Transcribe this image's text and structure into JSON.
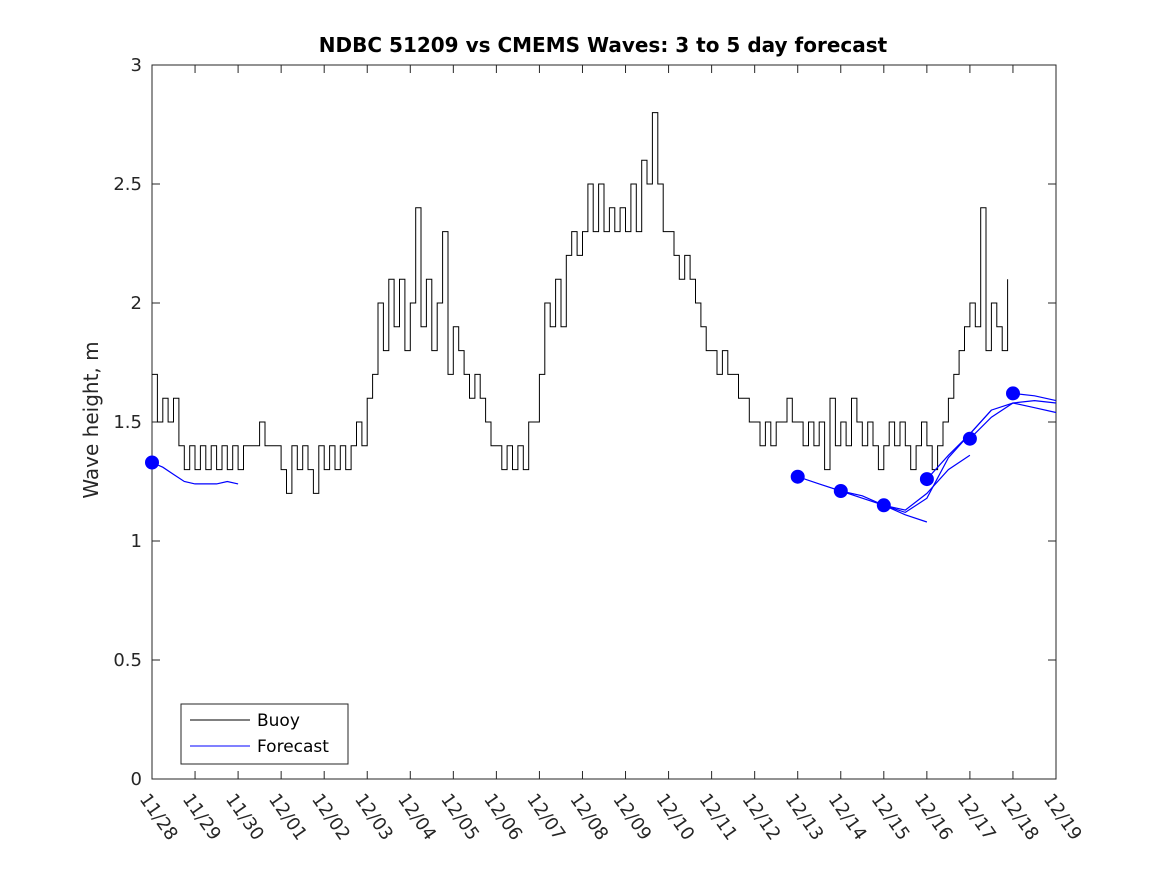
{
  "chart_data": {
    "type": "line",
    "title": "NDBC 51209 vs CMEMS Waves: 3 to 5 day forecast",
    "xlabel": "",
    "ylabel": "Wave height, m",
    "xlim": [
      "11/28",
      "12/19"
    ],
    "ylim": [
      0,
      3
    ],
    "x_tick_labels": [
      "11/28",
      "11/29",
      "11/30",
      "12/01",
      "12/02",
      "12/03",
      "12/04",
      "12/05",
      "12/06",
      "12/07",
      "12/08",
      "12/09",
      "12/10",
      "12/11",
      "12/12",
      "12/13",
      "12/14",
      "12/15",
      "12/16",
      "12/17",
      "12/18",
      "12/19"
    ],
    "y_ticks": [
      0,
      0.5,
      1,
      1.5,
      2,
      2.5,
      3
    ],
    "y_tick_labels": [
      "0",
      "0.5",
      "1",
      "1.5",
      "2",
      "2.5",
      "3"
    ],
    "grid": false,
    "legend": {
      "placement": "bottom-left",
      "entries": [
        "Buoy",
        "Forecast"
      ]
    },
    "series": [
      {
        "name": "Buoy",
        "color": "#000000",
        "points": [
          [
            "11/28 00:00",
            1.7
          ],
          [
            "11/28 03:00",
            1.5
          ],
          [
            "11/28 06:00",
            1.6
          ],
          [
            "11/28 09:00",
            1.5
          ],
          [
            "11/28 12:00",
            1.6
          ],
          [
            "11/28 15:00",
            1.4
          ],
          [
            "11/28 18:00",
            1.3
          ],
          [
            "11/28 21:00",
            1.4
          ],
          [
            "11/29 00:00",
            1.3
          ],
          [
            "11/29 03:00",
            1.4
          ],
          [
            "11/29 06:00",
            1.3
          ],
          [
            "11/29 09:00",
            1.4
          ],
          [
            "11/29 12:00",
            1.3
          ],
          [
            "11/29 15:00",
            1.4
          ],
          [
            "11/29 18:00",
            1.3
          ],
          [
            "11/29 21:00",
            1.4
          ],
          [
            "11/30 00:00",
            1.3
          ],
          [
            "11/30 03:00",
            1.4
          ],
          [
            "11/30 06:00",
            1.4
          ],
          [
            "11/30 09:00",
            1.4
          ],
          [
            "11/30 12:00",
            1.5
          ],
          [
            "11/30 15:00",
            1.4
          ],
          [
            "11/30 18:00",
            1.4
          ],
          [
            "11/30 21:00",
            1.4
          ],
          [
            "12/01 00:00",
            1.3
          ],
          [
            "12/01 03:00",
            1.2
          ],
          [
            "12/01 06:00",
            1.4
          ],
          [
            "12/01 09:00",
            1.3
          ],
          [
            "12/01 12:00",
            1.4
          ],
          [
            "12/01 15:00",
            1.3
          ],
          [
            "12/01 18:00",
            1.2
          ],
          [
            "12/01 21:00",
            1.4
          ],
          [
            "12/02 00:00",
            1.3
          ],
          [
            "12/02 03:00",
            1.4
          ],
          [
            "12/02 06:00",
            1.3
          ],
          [
            "12/02 09:00",
            1.4
          ],
          [
            "12/02 12:00",
            1.3
          ],
          [
            "12/02 15:00",
            1.4
          ],
          [
            "12/02 18:00",
            1.5
          ],
          [
            "12/02 21:00",
            1.4
          ],
          [
            "12/03 00:00",
            1.6
          ],
          [
            "12/03 03:00",
            1.7
          ],
          [
            "12/03 06:00",
            2.0
          ],
          [
            "12/03 09:00",
            1.8
          ],
          [
            "12/03 12:00",
            2.1
          ],
          [
            "12/03 15:00",
            1.9
          ],
          [
            "12/03 18:00",
            2.1
          ],
          [
            "12/03 21:00",
            1.8
          ],
          [
            "12/04 00:00",
            2.0
          ],
          [
            "12/04 03:00",
            2.4
          ],
          [
            "12/04 06:00",
            1.9
          ],
          [
            "12/04 09:00",
            2.1
          ],
          [
            "12/04 12:00",
            1.8
          ],
          [
            "12/04 15:00",
            2.0
          ],
          [
            "12/04 18:00",
            2.3
          ],
          [
            "12/04 21:00",
            1.7
          ],
          [
            "12/05 00:00",
            1.9
          ],
          [
            "12/05 03:00",
            1.8
          ],
          [
            "12/05 06:00",
            1.7
          ],
          [
            "12/05 09:00",
            1.6
          ],
          [
            "12/05 12:00",
            1.7
          ],
          [
            "12/05 15:00",
            1.6
          ],
          [
            "12/05 18:00",
            1.5
          ],
          [
            "12/05 21:00",
            1.4
          ],
          [
            "12/06 00:00",
            1.4
          ],
          [
            "12/06 03:00",
            1.3
          ],
          [
            "12/06 06:00",
            1.4
          ],
          [
            "12/06 09:00",
            1.3
          ],
          [
            "12/06 12:00",
            1.4
          ],
          [
            "12/06 15:00",
            1.3
          ],
          [
            "12/06 18:00",
            1.5
          ],
          [
            "12/06 21:00",
            1.5
          ],
          [
            "12/07 00:00",
            1.7
          ],
          [
            "12/07 03:00",
            2.0
          ],
          [
            "12/07 06:00",
            1.9
          ],
          [
            "12/07 09:00",
            2.1
          ],
          [
            "12/07 12:00",
            1.9
          ],
          [
            "12/07 15:00",
            2.2
          ],
          [
            "12/07 18:00",
            2.3
          ],
          [
            "12/07 21:00",
            2.2
          ],
          [
            "12/08 00:00",
            2.3
          ],
          [
            "12/08 03:00",
            2.5
          ],
          [
            "12/08 06:00",
            2.3
          ],
          [
            "12/08 09:00",
            2.5
          ],
          [
            "12/08 12:00",
            2.3
          ],
          [
            "12/08 15:00",
            2.4
          ],
          [
            "12/08 18:00",
            2.3
          ],
          [
            "12/08 21:00",
            2.4
          ],
          [
            "12/09 00:00",
            2.3
          ],
          [
            "12/09 03:00",
            2.5
          ],
          [
            "12/09 06:00",
            2.3
          ],
          [
            "12/09 09:00",
            2.6
          ],
          [
            "12/09 12:00",
            2.5
          ],
          [
            "12/09 15:00",
            2.8
          ],
          [
            "12/09 18:00",
            2.5
          ],
          [
            "12/09 21:00",
            2.3
          ],
          [
            "12/10 00:00",
            2.3
          ],
          [
            "12/10 03:00",
            2.2
          ],
          [
            "12/10 06:00",
            2.1
          ],
          [
            "12/10 09:00",
            2.2
          ],
          [
            "12/10 12:00",
            2.1
          ],
          [
            "12/10 15:00",
            2.0
          ],
          [
            "12/10 18:00",
            1.9
          ],
          [
            "12/10 21:00",
            1.8
          ],
          [
            "12/11 00:00",
            1.8
          ],
          [
            "12/11 03:00",
            1.7
          ],
          [
            "12/11 06:00",
            1.8
          ],
          [
            "12/11 09:00",
            1.7
          ],
          [
            "12/11 12:00",
            1.7
          ],
          [
            "12/11 15:00",
            1.6
          ],
          [
            "12/11 18:00",
            1.6
          ],
          [
            "12/11 21:00",
            1.5
          ],
          [
            "12/12 00:00",
            1.5
          ],
          [
            "12/12 03:00",
            1.4
          ],
          [
            "12/12 06:00",
            1.5
          ],
          [
            "12/12 09:00",
            1.4
          ],
          [
            "12/12 12:00",
            1.5
          ],
          [
            "12/12 15:00",
            1.5
          ],
          [
            "12/12 18:00",
            1.6
          ],
          [
            "12/12 21:00",
            1.5
          ],
          [
            "12/13 00:00",
            1.5
          ],
          [
            "12/13 03:00",
            1.4
          ],
          [
            "12/13 06:00",
            1.5
          ],
          [
            "12/13 09:00",
            1.4
          ],
          [
            "12/13 12:00",
            1.5
          ],
          [
            "12/13 15:00",
            1.3
          ],
          [
            "12/13 18:00",
            1.6
          ],
          [
            "12/13 21:00",
            1.4
          ],
          [
            "12/14 00:00",
            1.5
          ],
          [
            "12/14 03:00",
            1.4
          ],
          [
            "12/14 06:00",
            1.6
          ],
          [
            "12/14 09:00",
            1.5
          ],
          [
            "12/14 12:00",
            1.4
          ],
          [
            "12/14 15:00",
            1.5
          ],
          [
            "12/14 18:00",
            1.4
          ],
          [
            "12/14 21:00",
            1.3
          ],
          [
            "12/15 00:00",
            1.4
          ],
          [
            "12/15 03:00",
            1.5
          ],
          [
            "12/15 06:00",
            1.4
          ],
          [
            "12/15 09:00",
            1.5
          ],
          [
            "12/15 12:00",
            1.4
          ],
          [
            "12/15 15:00",
            1.3
          ],
          [
            "12/15 18:00",
            1.4
          ],
          [
            "12/15 21:00",
            1.5
          ],
          [
            "12/16 00:00",
            1.4
          ],
          [
            "12/16 03:00",
            1.3
          ],
          [
            "12/16 06:00",
            1.4
          ],
          [
            "12/16 09:00",
            1.5
          ],
          [
            "12/16 12:00",
            1.6
          ],
          [
            "12/16 15:00",
            1.7
          ],
          [
            "12/16 18:00",
            1.8
          ],
          [
            "12/16 21:00",
            1.9
          ],
          [
            "12/17 00:00",
            2.0
          ],
          [
            "12/17 03:00",
            1.9
          ],
          [
            "12/17 06:00",
            2.4
          ],
          [
            "12/17 09:00",
            1.8
          ],
          [
            "12/17 12:00",
            2.0
          ],
          [
            "12/17 15:00",
            1.9
          ],
          [
            "12/17 18:00",
            1.8
          ],
          [
            "12/17 21:00",
            2.1
          ]
        ]
      },
      {
        "name": "Forecast",
        "color": "#0000ff",
        "segments": [
          [
            [
              "11/28 00:00",
              1.33
            ],
            [
              "11/28 06:00",
              1.31
            ],
            [
              "11/28 12:00",
              1.28
            ],
            [
              "11/28 18:00",
              1.25
            ],
            [
              "11/29 00:00",
              1.24
            ],
            [
              "11/29 06:00",
              1.24
            ],
            [
              "11/29 12:00",
              1.24
            ],
            [
              "11/29 18:00",
              1.25
            ],
            [
              "11/30 00:00",
              1.24
            ]
          ],
          [
            [
              "12/13 00:00",
              1.27
            ],
            [
              "12/13 12:00",
              1.24
            ],
            [
              "12/14 00:00",
              1.21
            ],
            [
              "12/14 12:00",
              1.18
            ],
            [
              "12/15 00:00",
              1.15
            ],
            [
              "12/15 12:00",
              1.11
            ],
            [
              "12/16 00:00",
              1.08
            ]
          ],
          [
            [
              "12/14 00:00",
              1.21
            ],
            [
              "12/14 12:00",
              1.19
            ],
            [
              "12/15 00:00",
              1.15
            ],
            [
              "12/15 12:00",
              1.13
            ],
            [
              "12/16 00:00",
              1.2
            ],
            [
              "12/16 12:00",
              1.3
            ],
            [
              "12/17 00:00",
              1.36
            ]
          ],
          [
            [
              "12/15 00:00",
              1.15
            ],
            [
              "12/15 12:00",
              1.12
            ],
            [
              "12/16 00:00",
              1.18
            ],
            [
              "12/16 12:00",
              1.35
            ],
            [
              "12/17 00:00",
              1.45
            ],
            [
              "12/17 12:00",
              1.55
            ]
          ],
          [
            [
              "12/16 00:00",
              1.26
            ],
            [
              "12/16 12:00",
              1.36
            ],
            [
              "12/17 00:00",
              1.45
            ],
            [
              "12/17 12:00",
              1.55
            ],
            [
              "12/18 00:00",
              1.58
            ],
            [
              "12/18 12:00",
              1.56
            ],
            [
              "12/19 00:00",
              1.54
            ]
          ],
          [
            [
              "12/17 00:00",
              1.43
            ],
            [
              "12/17 12:00",
              1.52
            ],
            [
              "12/18 00:00",
              1.58
            ],
            [
              "12/18 12:00",
              1.59
            ],
            [
              "12/19 00:00",
              1.58
            ]
          ],
          [
            [
              "12/18 00:00",
              1.62
            ],
            [
              "12/18 12:00",
              1.61
            ],
            [
              "12/19 00:00",
              1.59
            ]
          ]
        ],
        "markers": [
          [
            "11/28 00:00",
            1.33
          ],
          [
            "12/13 00:00",
            1.27
          ],
          [
            "12/14 00:00",
            1.21
          ],
          [
            "12/15 00:00",
            1.15
          ],
          [
            "12/16 00:00",
            1.26
          ],
          [
            "12/17 00:00",
            1.43
          ],
          [
            "12/18 00:00",
            1.62
          ]
        ]
      }
    ]
  }
}
